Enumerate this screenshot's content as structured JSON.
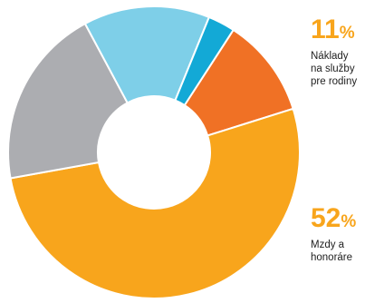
{
  "chart_data": {
    "type": "pie",
    "title": "",
    "donut": true,
    "legend": "none",
    "slices": [
      {
        "value": 11,
        "color": "#f07125"
      },
      {
        "value": 52,
        "color": "#f8a51c"
      },
      {
        "value": 20,
        "color": "#acadb1"
      },
      {
        "value": 14,
        "color": "#7ecfe8"
      },
      {
        "value": 3,
        "color": "#13a9d6"
      }
    ],
    "annotations": [
      {
        "value": "11",
        "unit": "%",
        "label_lines": [
          "Náklady",
          "na služby",
          "pre rodiny"
        ],
        "color": "#f8a51c"
      },
      {
        "value": "52",
        "unit": "%",
        "label_lines": [
          "Mzdy a",
          "honoráre"
        ],
        "color": "#f8a51c"
      }
    ]
  }
}
